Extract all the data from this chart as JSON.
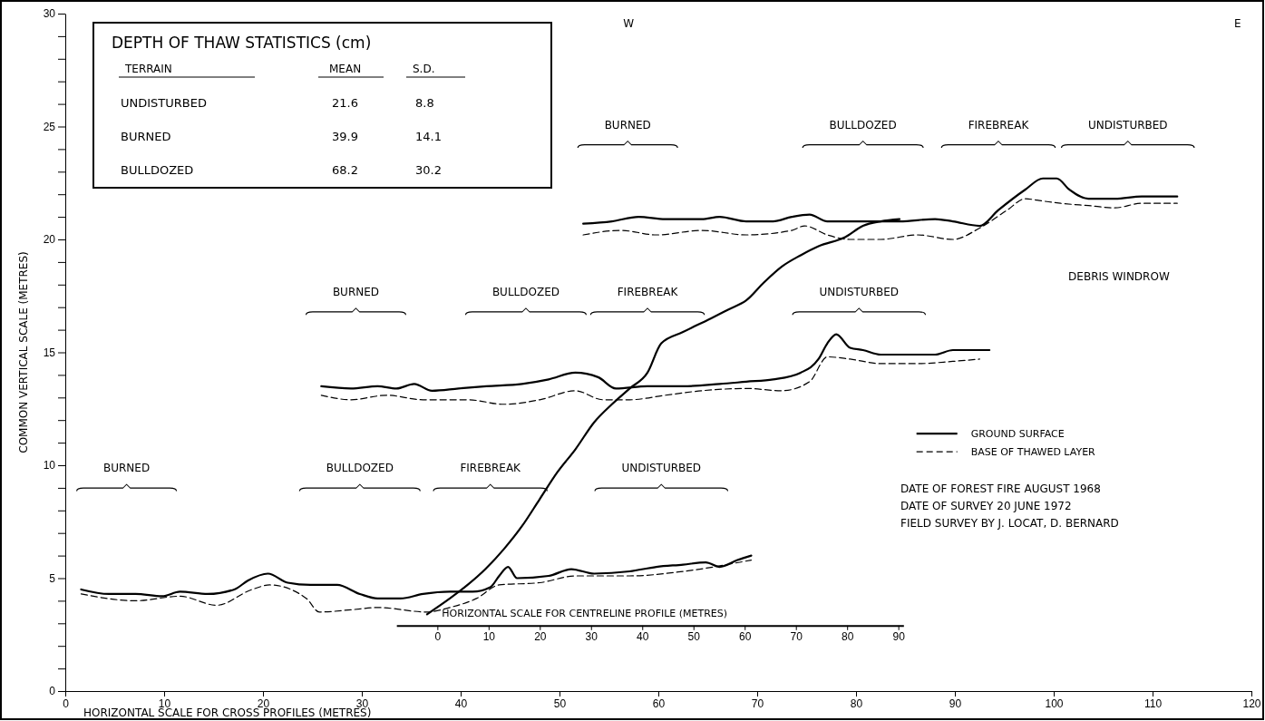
{
  "chart_data": {
    "type": "line",
    "xlabel": "HORIZONTAL SCALE FOR CROSS PROFILES (METRES)",
    "ylabel": "COMMON VERTICAL SCALE (METRES)",
    "x2label": "HORIZONTAL SCALE FOR CENTRELINE PROFILE (METRES)",
    "xlim": [
      0,
      120
    ],
    "xticks": [
      0,
      10,
      20,
      30,
      40,
      50,
      60,
      70,
      80,
      90,
      100,
      110,
      120
    ],
    "x2lim": [
      -8,
      91
    ],
    "x2ticks": [
      0,
      10,
      20,
      30,
      40,
      50,
      60,
      70,
      80,
      90
    ],
    "ylim": [
      0,
      30
    ],
    "yticks": [
      0,
      {
        "value": 1,
        "label": null
      },
      {
        "value": 2,
        "label": null
      },
      {
        "value": 3,
        "label": null
      },
      {
        "value": 4,
        "label": null
      },
      5,
      {
        "value": 6,
        "label": null
      },
      {
        "value": 7,
        "label": null
      },
      {
        "value": 8,
        "label": null
      },
      {
        "value": 9,
        "label": null
      },
      10,
      {
        "value": 11,
        "label": null
      },
      {
        "value": 12,
        "label": null
      },
      {
        "value": 13,
        "label": null
      },
      {
        "value": 14,
        "label": null
      },
      15,
      {
        "value": 16,
        "label": null
      },
      {
        "value": 17,
        "label": null
      },
      {
        "value": 18,
        "label": null
      },
      {
        "value": 19,
        "label": null
      },
      20,
      {
        "value": 21,
        "label": null
      },
      {
        "value": 22,
        "label": null
      },
      {
        "value": 23,
        "label": null
      },
      {
        "value": 24,
        "label": null
      },
      25,
      {
        "value": 26,
        "label": null
      },
      {
        "value": 27,
        "label": null
      },
      {
        "value": 28,
        "label": null
      },
      {
        "value": 29,
        "label": null
      },
      30
    ],
    "grid": false,
    "legend": "right",
    "marker": "none",
    "series": [
      {
        "name": "GROUND SURFACE",
        "color": "#000000",
        "line_style": "solid",
        "x": [
          1.6,
          4.4,
          7.1,
          9.8,
          11.6,
          14.4,
          17.1,
          18.5,
          20.5,
          22.5,
          24.8,
          27.5,
          29.8,
          31.6,
          33.9,
          36.2,
          38.9,
          41.2,
          43.0,
          43.9,
          44.8,
          45.7,
          48.9,
          51.2,
          53.5,
          57.1,
          59.8,
          62.5,
          64.8,
          66.2,
          68.0,
          69.4
        ],
        "values": [
          4.5,
          4.3,
          4.3,
          4.2,
          4.4,
          4.3,
          4.5,
          4.9,
          5.2,
          4.8,
          4.7,
          4.7,
          4.3,
          4.1,
          4.1,
          4.3,
          4.4,
          4.4,
          4.6,
          5.1,
          5.5,
          5.0,
          5.1,
          5.4,
          5.2,
          5.3,
          5.5,
          5.6,
          5.7,
          5.5,
          5.8,
          6.0
        ]
      },
      {
        "name": "BASE OF THAWED LAYER",
        "color": "#000000",
        "line_style": "dashed",
        "x": [
          1.6,
          7.1,
          11.6,
          15.3,
          18.9,
          20.7,
          24.4,
          25.7,
          28.9,
          31.6,
          36.6,
          38.9,
          41.6,
          43.9,
          48.0,
          51.6,
          57.1,
          62.5,
          69.4
        ],
        "values": [
          4.3,
          4.0,
          4.2,
          3.8,
          4.5,
          4.7,
          4.1,
          3.5,
          3.6,
          3.7,
          3.5,
          3.7,
          4.1,
          4.7,
          4.8,
          5.1,
          5.1,
          5.3,
          5.8
        ]
      },
      {
        "color": "#000000",
        "line_style": "solid",
        "x": [
          25.9,
          28.9,
          31.6,
          33.5,
          35.3,
          37.1,
          39.8,
          42.6,
          46.2,
          48.9,
          51.6,
          53.9,
          55.7,
          58.9,
          62.5,
          66.2,
          68.9,
          71.6,
          74.4,
          76.2,
          77.1,
          78.0,
          79.4,
          80.7,
          82.5,
          84.4,
          86.2,
          88.0,
          89.8,
          91.6,
          93.5
        ],
        "values": [
          13.5,
          13.4,
          13.5,
          13.4,
          13.6,
          13.3,
          13.4,
          13.5,
          13.6,
          13.8,
          14.1,
          13.9,
          13.4,
          13.5,
          13.5,
          13.6,
          13.7,
          13.8,
          14.1,
          14.7,
          15.4,
          15.8,
          15.2,
          15.1,
          14.9,
          14.9,
          14.9,
          14.9,
          15.1,
          15.1,
          15.1
        ]
      },
      {
        "color": "#000000",
        "line_style": "dashed",
        "x": [
          25.9,
          28.9,
          32.5,
          36.2,
          40.7,
          44.4,
          48.0,
          51.6,
          54.4,
          57.1,
          60.7,
          64.4,
          68.9,
          72.5,
          75.3,
          77.1,
          79.4,
          82.5,
          86.2,
          89.8,
          92.5
        ],
        "values": [
          13.1,
          12.9,
          13.1,
          12.9,
          12.9,
          12.7,
          12.9,
          13.3,
          12.9,
          12.9,
          13.1,
          13.3,
          13.4,
          13.3,
          13.7,
          14.8,
          14.7,
          14.5,
          14.5,
          14.6,
          14.7
        ]
      },
      {
        "color": "#000000",
        "line_style": "solid",
        "x": [
          52.4,
          55.3,
          58.0,
          60.7,
          64.4,
          66.2,
          68.9,
          71.6,
          73.5,
          75.3,
          77.1,
          80.7,
          84.4,
          88.0,
          89.8,
          92.5,
          94.4,
          97.1,
          98.9,
          100.3,
          101.6,
          103.5,
          106.2,
          108.9,
          111.6,
          112.5
        ],
        "values": [
          20.7,
          20.8,
          21.0,
          20.9,
          20.9,
          21.0,
          20.8,
          20.8,
          21.0,
          21.1,
          20.8,
          20.8,
          20.8,
          20.9,
          20.8,
          20.6,
          21.3,
          22.2,
          22.7,
          22.7,
          22.2,
          21.8,
          21.8,
          21.9,
          21.9,
          21.9
        ]
      },
      {
        "color": "#000000",
        "line_style": "dashed",
        "x": [
          52.4,
          56.2,
          59.8,
          64.4,
          68.9,
          73.5,
          74.8,
          77.1,
          79.4,
          82.5,
          86.2,
          89.8,
          92.5,
          95.3,
          97.1,
          98.9,
          100.7,
          103.5,
          106.2,
          108.9,
          112.5
        ],
        "values": [
          20.2,
          20.4,
          20.2,
          20.4,
          20.2,
          20.4,
          20.6,
          20.2,
          20.0,
          20.0,
          20.2,
          20.0,
          20.5,
          21.3,
          21.8,
          21.7,
          21.6,
          21.5,
          21.4,
          21.6,
          21.6
        ]
      },
      {
        "color": "#000000",
        "line_style": "solid",
        "x": [
          36.6,
          38.9,
          40.7,
          42.5,
          44.4,
          46.2,
          48.0,
          49.8,
          51.6,
          53.5,
          55.3,
          57.1,
          58.9,
          60.3,
          62.5,
          65.3,
          67.1,
          68.9,
          70.7,
          72.5,
          74.4,
          76.2,
          78.9,
          80.7,
          82.5,
          84.4
        ],
        "values": [
          3.4,
          4.1,
          4.7,
          5.4,
          6.3,
          7.3,
          8.5,
          9.7,
          10.7,
          11.9,
          12.7,
          13.4,
          14.1,
          15.4,
          15.9,
          16.5,
          16.9,
          17.3,
          18.1,
          18.8,
          19.3,
          19.7,
          20.1,
          20.6,
          20.8,
          20.9
        ]
      }
    ],
    "annotations": [
      "DEPTH OF THAW STATISTICS (cm)",
      "TERRAIN",
      "MEAN",
      "S.D.",
      "UNDISTURBED",
      "21.6",
      "8.8",
      "BURNED",
      "39.9",
      "14.1",
      "BULLDOZED",
      "68.2",
      "30.2",
      "DATE OF FOREST FIRE AUGUST 1968",
      "DATE OF SURVEY 20 JUNE 1972",
      "FIELD SURVEY BY J. LOCAT, D. BERNARD",
      "W",
      "E",
      "BURNED",
      "BULLDOZED",
      "FIREBREAK",
      "UNDISTURBED",
      "BURNED",
      "BULLDOZED",
      "FIREBREAK",
      "UNDISTURBED",
      "BURNED",
      "BULLDOZED",
      "FIREBREAK",
      "UNDISTURBED",
      "DEBRIS WINDROW"
    ]
  }
}
